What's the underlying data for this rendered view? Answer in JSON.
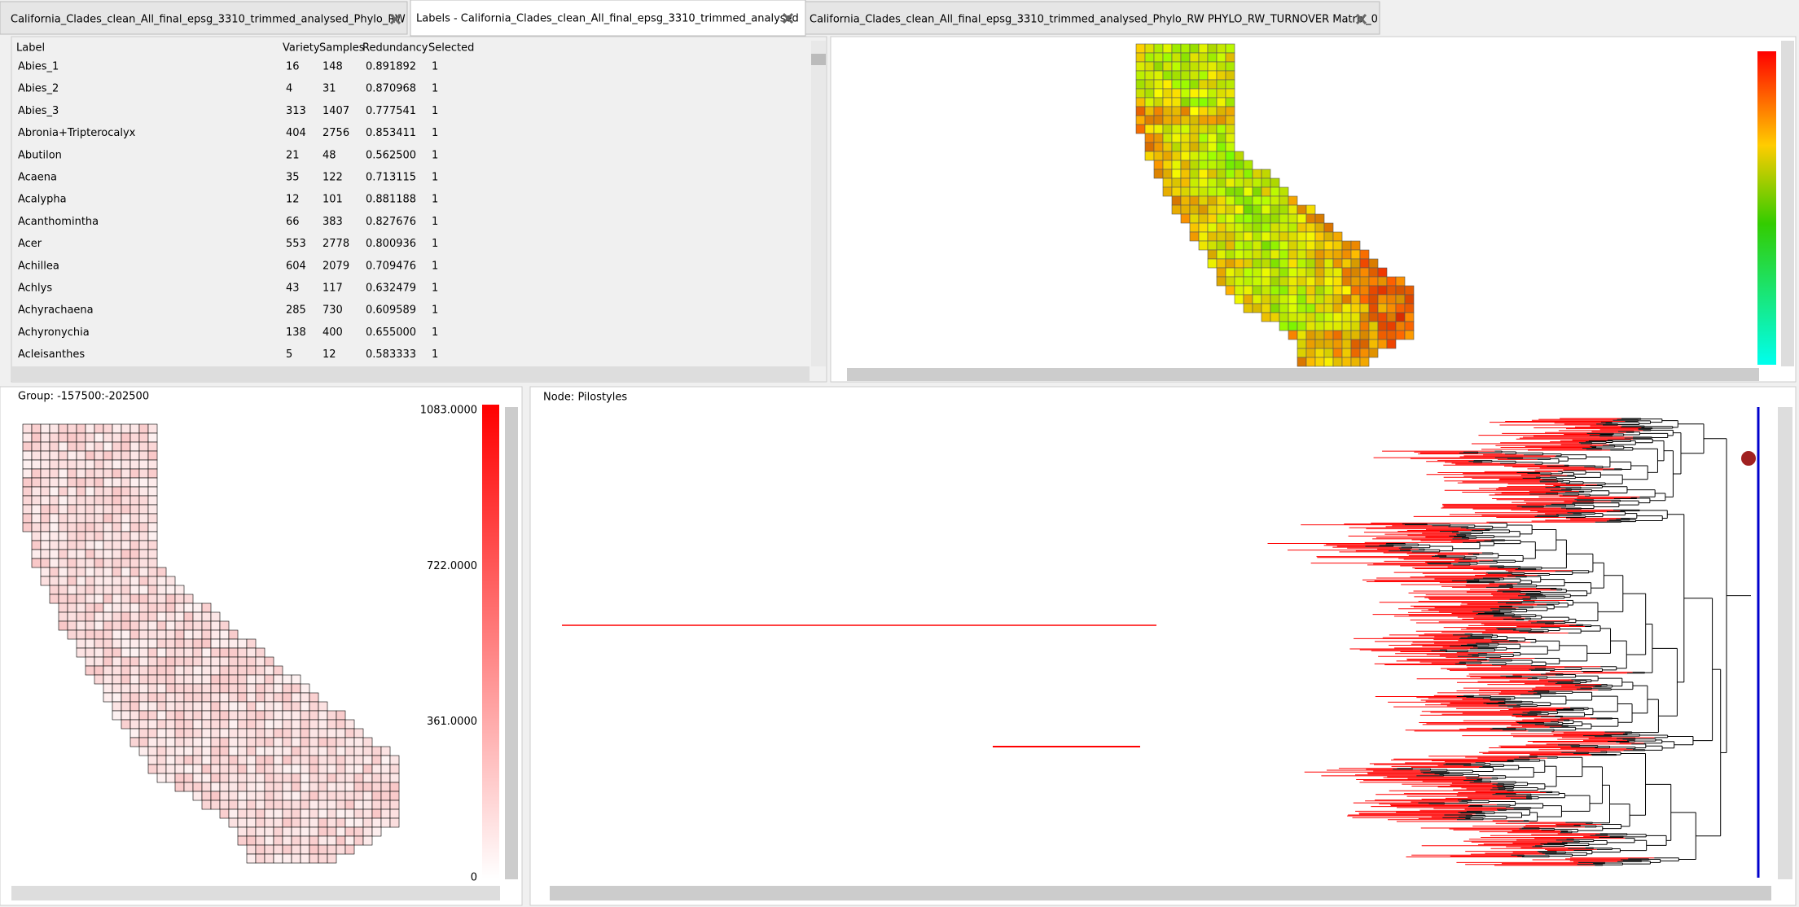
{
  "tabs": [
    "California_Clades_clean_All_final_epsg_3310_trimmed_analysed_Phylo_RW",
    "Labels - California_Clades_clean_All_final_epsg_3310_trimmed_analysed",
    "California_Clades_clean_All_final_epsg_3310_trimmed_analysed_Phylo_RW PHYLO_RW_TURNOVER Matrix_0"
  ],
  "table": {
    "columns": [
      "Label",
      "Variety",
      "Samples",
      "Redundancy",
      "Selected"
    ],
    "rows": [
      [
        "Abies_1",
        "16",
        "148",
        "0.891892",
        "1"
      ],
      [
        "Abies_2",
        "4",
        "31",
        "0.870968",
        "1"
      ],
      [
        "Abies_3",
        "313",
        "1407",
        "0.777541",
        "1"
      ],
      [
        "Abronia+Tripterocalyx",
        "404",
        "2756",
        "0.853411",
        "1"
      ],
      [
        "Abutilon",
        "21",
        "48",
        "0.562500",
        "1"
      ],
      [
        "Acaena",
        "35",
        "122",
        "0.713115",
        "1"
      ],
      [
        "Acalypha",
        "12",
        "101",
        "0.881188",
        "1"
      ],
      [
        "Acanthomintha",
        "66",
        "383",
        "0.827676",
        "1"
      ],
      [
        "Acer",
        "553",
        "2778",
        "0.800936",
        "1"
      ],
      [
        "Achillea",
        "604",
        "2079",
        "0.709476",
        "1"
      ],
      [
        "Achlys",
        "43",
        "117",
        "0.632479",
        "1"
      ],
      [
        "Achyrachaena",
        "285",
        "730",
        "0.609589",
        "1"
      ],
      [
        "Achyronychia",
        "138",
        "400",
        "0.655000",
        "1"
      ],
      [
        "Acleisanthes",
        "5",
        "12",
        "0.583333",
        "1"
      ]
    ]
  },
  "group_panel": {
    "group_label": "Group: -157500:-202500",
    "legend_ticks": [
      {
        "value": 0,
        "label": "0"
      },
      {
        "value": 361,
        "label": "361.0000"
      },
      {
        "value": 722,
        "label": "722.0000"
      },
      {
        "value": 1083,
        "label": "1083.0000"
      }
    ]
  },
  "tree_panel": {
    "node_label": "Node: Pilostyles"
  }
}
